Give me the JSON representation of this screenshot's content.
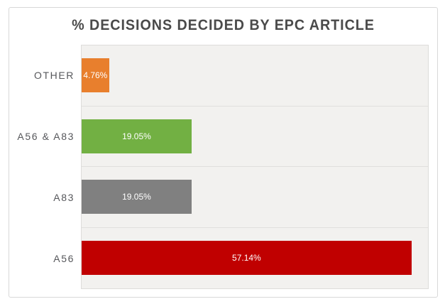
{
  "chart_data": {
    "type": "bar",
    "orientation": "horizontal",
    "title": "% DECISIONS DECIDED BY EPC ARTICLE",
    "categories": [
      "OTHER",
      "A56 & A83",
      "A83",
      "A56"
    ],
    "values": [
      4.76,
      19.05,
      19.05,
      57.14
    ],
    "value_labels": [
      "4.76%",
      "19.05%",
      "19.05%",
      "57.14%"
    ],
    "colors": [
      "#e87f2d",
      "#72b043",
      "#808080",
      "#c00000"
    ],
    "xlim": [
      0,
      60
    ],
    "grid": false,
    "legend": false,
    "plot_bg": "#f2f1ef",
    "title_color": "#4a4a4a",
    "label_color": "#56575b",
    "value_label_color": "#ffffff"
  }
}
